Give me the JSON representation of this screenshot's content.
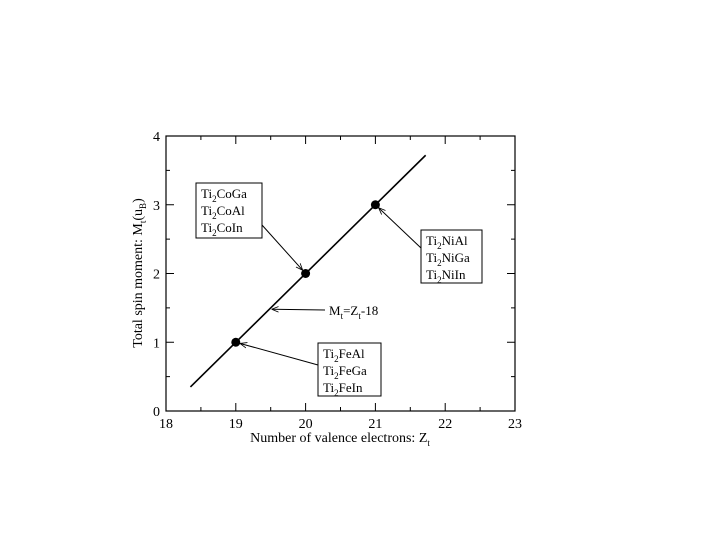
{
  "chart_data": {
    "type": "scatter",
    "xlabel": {
      "main": "Number of valence electrons: Z",
      "sub": "t"
    },
    "ylabel": {
      "pre": "Total spin moment: M",
      "sub1": "t",
      "mid": "(u",
      "sub2": "B",
      "post": ")"
    },
    "xlim": [
      18,
      23
    ],
    "ylim": [
      0,
      4
    ],
    "x_ticks": [
      "18",
      "19",
      "20",
      "21",
      "22",
      "23"
    ],
    "y_ticks": [
      "0",
      "1",
      "2",
      "3",
      "4"
    ],
    "grid": false,
    "series": [
      {
        "points": [
          {
            "x": 19,
            "y": 1
          },
          {
            "x": 20,
            "y": 2
          },
          {
            "x": 21,
            "y": 3
          }
        ]
      }
    ],
    "fit_line": {
      "x": [
        18.35,
        21.72
      ],
      "y": [
        0.35,
        3.72
      ]
    },
    "annotations": [
      {
        "id": "co",
        "lines": [
          {
            "pre": "Ti",
            "sub": "2",
            "post": "CoGa"
          },
          {
            "pre": "Ti",
            "sub": "2",
            "post": "CoAl"
          },
          {
            "pre": "Ti",
            "sub": "2",
            "post": "CoIn"
          }
        ],
        "target": {
          "x": 20,
          "y": 2
        }
      },
      {
        "id": "ni",
        "lines": [
          {
            "pre": "Ti",
            "sub": "2",
            "post": "NiAl"
          },
          {
            "pre": "Ti",
            "sub": "2",
            "post": "NiGa"
          },
          {
            "pre": "Ti",
            "sub": "2",
            "post": "NiIn"
          }
        ],
        "target": {
          "x": 21,
          "y": 3
        }
      },
      {
        "id": "fe",
        "lines": [
          {
            "pre": "Ti",
            "sub": "2",
            "post": "FeAl"
          },
          {
            "pre": "Ti",
            "sub": "2",
            "post": "FeGa"
          },
          {
            "pre": "Ti",
            "sub": "2",
            "post": "FeIn"
          }
        ],
        "target": {
          "x": 19,
          "y": 1
        }
      }
    ],
    "formula_label": {
      "parts": [
        {
          "text": "M",
          "sub": false
        },
        {
          "text": "t",
          "sub": true
        },
        {
          "text": "=Z",
          "sub": false
        },
        {
          "text": "t",
          "sub": true
        },
        {
          "text": "-18",
          "sub": false
        }
      ],
      "target": {
        "x": 19.48,
        "y": 1.48
      }
    }
  }
}
